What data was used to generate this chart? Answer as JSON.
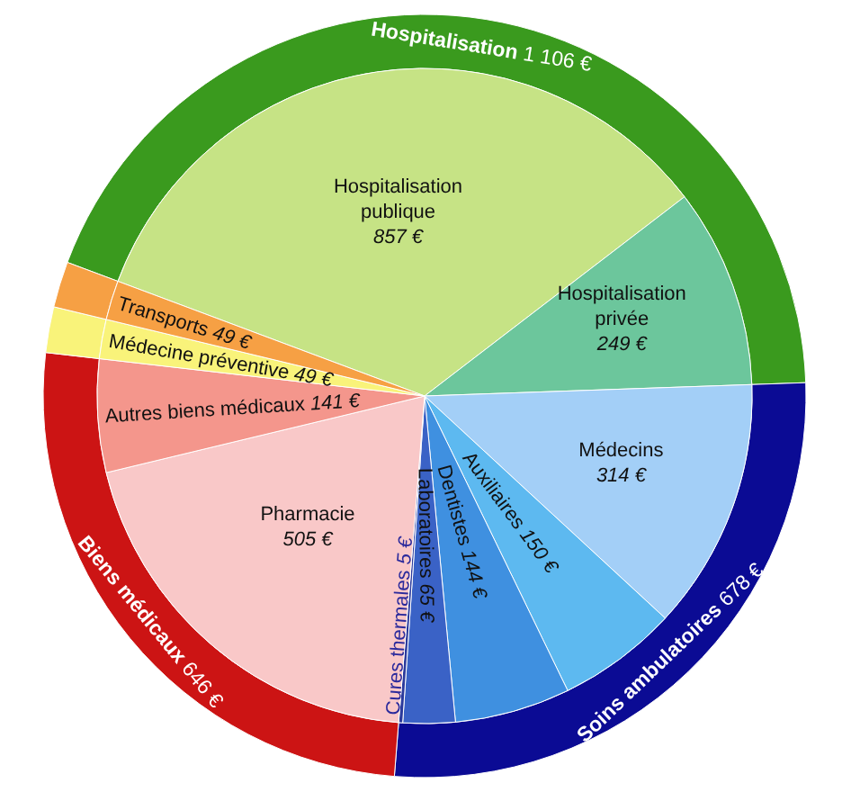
{
  "chart_data": [
    {
      "type": "donut",
      "categories": [
        "Hospitalisation",
        "Soins ambulatoires",
        "Biens médicaux",
        null,
        null
      ],
      "values": [
        1106,
        678,
        646,
        49,
        49
      ],
      "value_labels": [
        "1 106 €",
        "678 €",
        "646 €",
        null,
        null
      ],
      "colors": [
        "#3a9a1e",
        "#0b0b94",
        "#cc1414",
        "#f9f37a",
        "#f6a044"
      ]
    },
    {
      "type": "pie",
      "categories": [
        "Hospitalisation publique",
        "Hospitalisation privée",
        "Médecins",
        "Auxiliaires",
        "Dentistes",
        "Laboratoires",
        "Cures thermales",
        "Pharmacie",
        "Autres biens médicaux",
        "Médecine préventive",
        "Transports"
      ],
      "values": [
        857,
        249,
        314,
        150,
        144,
        65,
        5,
        505,
        141,
        49,
        49
      ],
      "value_labels": [
        "857 €",
        "249 €",
        "314 €",
        "150 €",
        "144 €",
        "65 €",
        "5 €",
        "505 €",
        "141 €",
        "49 €",
        "49 €"
      ],
      "colors": [
        "#c6e385",
        "#6cc69c",
        "#a3cff7",
        "#5db9f0",
        "#3f90e0",
        "#3a62c6",
        "#2b3a9c",
        "#f9c8c8",
        "#f4968c",
        "#f9f37a",
        "#f6a044"
      ]
    }
  ]
}
